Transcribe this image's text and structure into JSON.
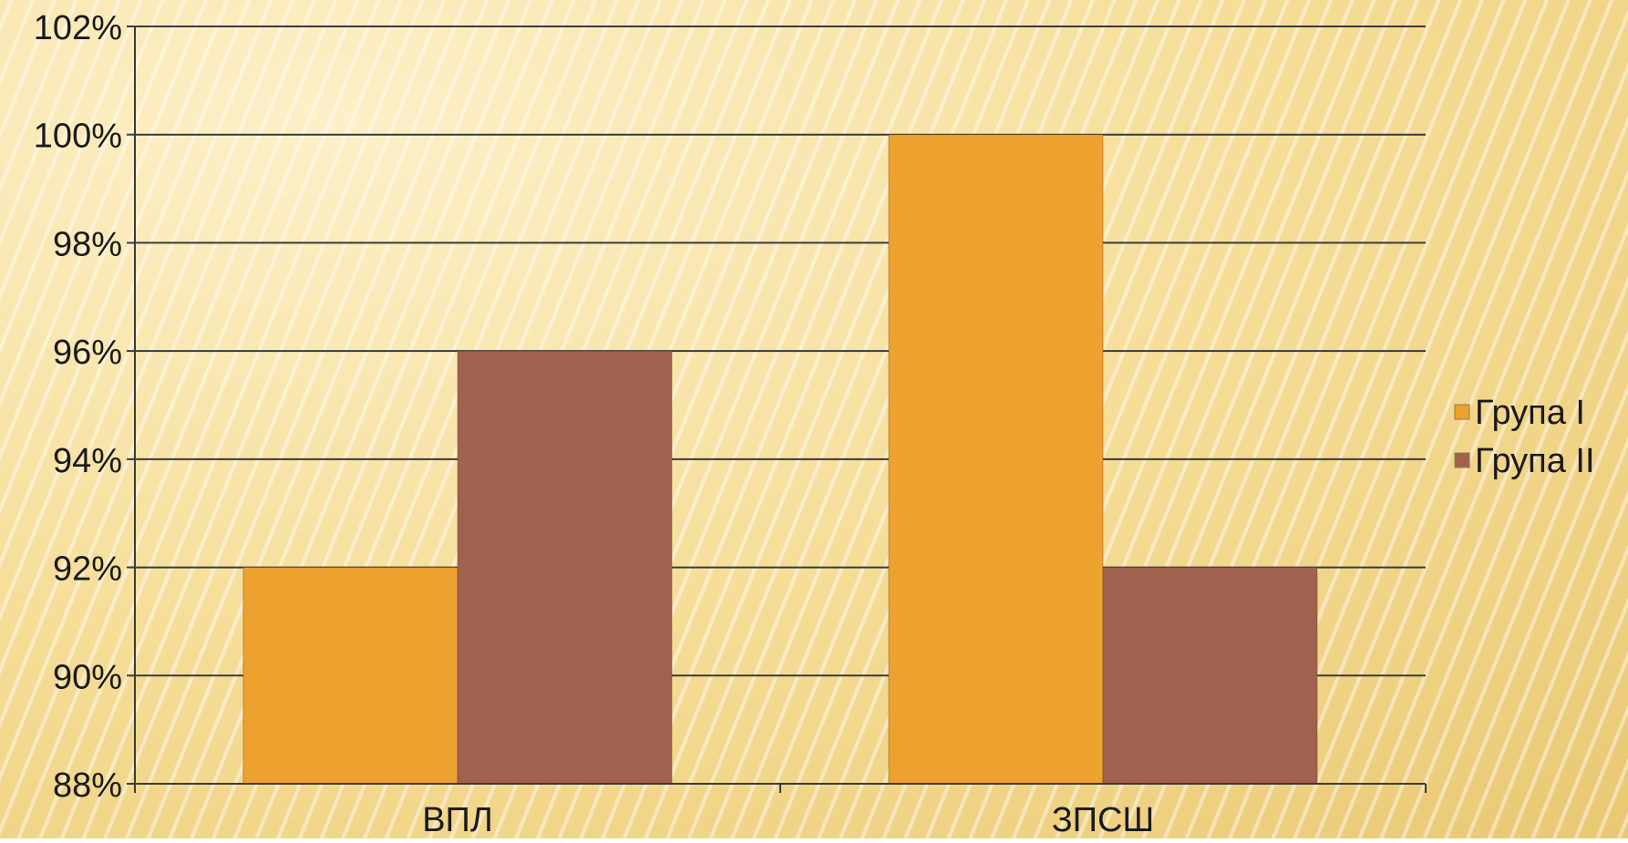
{
  "colors": {
    "series1": "#EDA22F",
    "series2": "#A0614E",
    "grid": "#3a3a3a",
    "text": "#1a1a1a"
  },
  "chart_data": {
    "type": "bar",
    "categories": [
      "ВПЛ",
      "ЗПСШ"
    ],
    "series": [
      {
        "name": "Група I",
        "values": [
          92,
          100
        ]
      },
      {
        "name": "Група II",
        "values": [
          96,
          92
        ]
      }
    ],
    "ylim": [
      88,
      102
    ],
    "yticks": [
      88,
      90,
      92,
      94,
      96,
      98,
      100,
      102
    ],
    "ytick_labels": [
      "88%",
      "90%",
      "92%",
      "94%",
      "96%",
      "98%",
      "100%",
      "102%"
    ],
    "grid": true,
    "legend_position": "right"
  }
}
